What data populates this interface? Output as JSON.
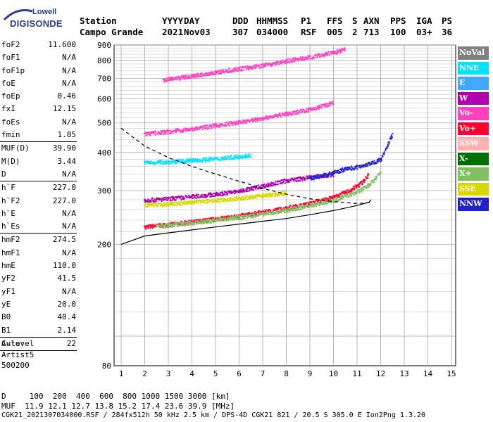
{
  "logo": {
    "top": "Lowell",
    "bottom": "DIGISONDE",
    "color": "#2a3d8f"
  },
  "header": {
    "labels": [
      "Station",
      "YYYY",
      "DAY",
      "DDD",
      "HHMMSS",
      "P1",
      "FFS",
      "S",
      "AXN",
      "PPS",
      "IGA",
      "PS"
    ],
    "values": [
      "Campo Grande",
      "2021",
      "Nov03",
      "307",
      "034000",
      "RSF",
      "005",
      "2",
      "713",
      "100",
      "03+",
      "36"
    ]
  },
  "params": {
    "group1": [
      {
        "label": "foF2",
        "value": "11.600"
      },
      {
        "label": "foF1",
        "value": "N/A"
      },
      {
        "label": "foF1p",
        "value": "N/A"
      },
      {
        "label": "foE",
        "value": "N/A"
      },
      {
        "label": "foEp",
        "value": "0.46"
      },
      {
        "label": "fxI",
        "value": "12.15"
      },
      {
        "label": "foEs",
        "value": "N/A"
      },
      {
        "label": "fmin",
        "value": "1.85"
      }
    ],
    "group2": [
      {
        "label": "MUF(D)",
        "value": "39.90"
      },
      {
        "label": "M(D)",
        "value": "3.44"
      },
      {
        "label": "D",
        "value": "N/A"
      }
    ],
    "group3": [
      {
        "label": "h`F",
        "value": "227.0"
      },
      {
        "label": "h`F2",
        "value": "227.0"
      },
      {
        "label": "h`E",
        "value": "N/A"
      },
      {
        "label": "h`Es",
        "value": "N/A"
      }
    ],
    "group4": [
      {
        "label": "hmF2",
        "value": "274.5"
      },
      {
        "label": "hmF1",
        "value": "N/A"
      },
      {
        "label": "hmE",
        "value": "110.0"
      },
      {
        "label": "yF2",
        "value": "41.5"
      },
      {
        "label": "yF1",
        "value": "N/A"
      },
      {
        "label": "yE",
        "value": "20.0"
      },
      {
        "label": "B0",
        "value": "40.4"
      },
      {
        "label": "B1",
        "value": "2.14"
      }
    ],
    "group5": [
      {
        "label": "C-level",
        "value": "22"
      }
    ],
    "auto_label": "Auto:",
    "artist": "Artist5",
    "code": "500200"
  },
  "legend": [
    {
      "label": "NoVal",
      "color": "#808080"
    },
    {
      "label": "NNE",
      "color": "#00e0ff"
    },
    {
      "label": "E",
      "color": "#40a8ff"
    },
    {
      "label": "W",
      "color": "#b000b0"
    },
    {
      "label": "Vo-",
      "color": "#ff40c0"
    },
    {
      "label": "Vo+",
      "color": "#ff0030"
    },
    {
      "label": "SSW",
      "color": "#ffb0b0"
    },
    {
      "label": "X-",
      "color": "#007000"
    },
    {
      "label": "X+",
      "color": "#80c060"
    },
    {
      "label": "SSE",
      "color": "#d8d800"
    },
    {
      "label": "NNW",
      "color": "#2020d0"
    }
  ],
  "footer": {
    "d_row": "D     100  200  400  600  800 1000 1500 3000 [km]",
    "muf_row": "MUF  11.9 12.1 12.7 13.8 15.2 17.4 23.6 39.9 [MHz]",
    "file_row": "CGK21_2021307034000.RSF / 284fx512h 50 kHz 2.5 km / DPS-4D CGK21 821 / 20.5 S 305.0 E Ion2Png 1.3.20"
  },
  "chart_data": {
    "type": "scatter",
    "title": "",
    "xlabel": "",
    "ylabel": "",
    "xlim": [
      1,
      15
    ],
    "ylim": [
      80,
      900
    ],
    "y_scale": "log",
    "grid": true,
    "x_ticks": [
      1,
      2,
      3,
      4,
      5,
      6,
      7,
      8,
      9,
      10,
      11,
      12,
      13,
      14,
      15
    ],
    "y_ticks": [
      80,
      200,
      300,
      400,
      500,
      600,
      700,
      800,
      900
    ],
    "series": [
      {
        "name": "Vo+",
        "color": "#ff0030",
        "x": [
          2.0,
          3.0,
          4.0,
          5.0,
          6.0,
          7.0,
          8.0,
          9.0,
          10.0,
          10.5,
          11.0,
          11.3,
          11.5
        ],
        "y": [
          229,
          233,
          238,
          243,
          249,
          256,
          264,
          273,
          287,
          297,
          312,
          326,
          345
        ]
      },
      {
        "name": "X+",
        "color": "#80c060",
        "x": [
          2.5,
          4.0,
          6.0,
          8.0,
          10.0,
          11.0,
          11.5,
          11.8,
          12.0
        ],
        "y": [
          230,
          236,
          246,
          259,
          280,
          298,
          315,
          333,
          350
        ]
      },
      {
        "name": "W",
        "color": "#b000b0",
        "x": [
          2.0,
          3.0,
          4.0,
          5.0,
          6.0,
          7.0,
          8.0,
          9.0,
          10.0
        ],
        "y": [
          280,
          283,
          288,
          293,
          300,
          312,
          325,
          333,
          340
        ]
      },
      {
        "name": "NNE",
        "color": "#00e0ff",
        "x": [
          2.0,
          3.0,
          4.0,
          5.0,
          6.0,
          6.5
        ],
        "y": [
          372,
          374,
          378,
          383,
          390,
          393
        ]
      },
      {
        "name": "Vo-",
        "color": "#ff40c0",
        "x": [
          2.0,
          3.0,
          4.0,
          5.0,
          6.0,
          7.0,
          8.0,
          9.0,
          10.0
        ],
        "y": [
          462,
          470,
          480,
          492,
          505,
          520,
          538,
          555,
          585
        ]
      },
      {
        "name": "SSE",
        "color": "#d8d800",
        "x": [
          2.0,
          3.0,
          4.0,
          5.0,
          6.0,
          7.0,
          8.0
        ],
        "y": [
          270,
          272,
          276,
          280,
          284,
          290,
          296
        ]
      },
      {
        "name": "NNW",
        "color": "#2020d0",
        "x": [
          9.0,
          10.0,
          10.5,
          11.0,
          12.0,
          12.5
        ],
        "y": [
          330,
          345,
          355,
          360,
          380,
          465
        ]
      },
      {
        "name": "Vo-",
        "color": "#ff40c0",
        "x": [
          2.8,
          4.0,
          5.0,
          6.0,
          7.0,
          8.0,
          9.0,
          10.0,
          10.5
        ],
        "y": [
          695,
          715,
          735,
          755,
          775,
          800,
          825,
          855,
          875
        ]
      }
    ],
    "profile_solid": {
      "x": [
        1.0,
        2.0,
        3.0,
        4.0,
        5.0,
        6.0,
        7.0,
        8.0,
        9.0,
        10.0,
        11.0,
        11.5,
        11.6
      ],
      "y": [
        200,
        213,
        218,
        223,
        228,
        233,
        238,
        243,
        250,
        258,
        268,
        274.5,
        280
      ]
    },
    "profile_dashed": {
      "x": [
        1.0,
        2.0,
        3.0,
        4.0,
        5.0,
        6.0,
        7.0,
        8.0,
        9.0,
        10.0,
        11.0,
        11.6
      ],
      "y": [
        480,
        420,
        385,
        360,
        340,
        322,
        305,
        292,
        282,
        276,
        272,
        274.5
      ]
    },
    "profile_lower_dashed": {
      "x": [
        1.0,
        2.0,
        3.0
      ],
      "y": [
        200,
        200,
        200
      ]
    }
  }
}
